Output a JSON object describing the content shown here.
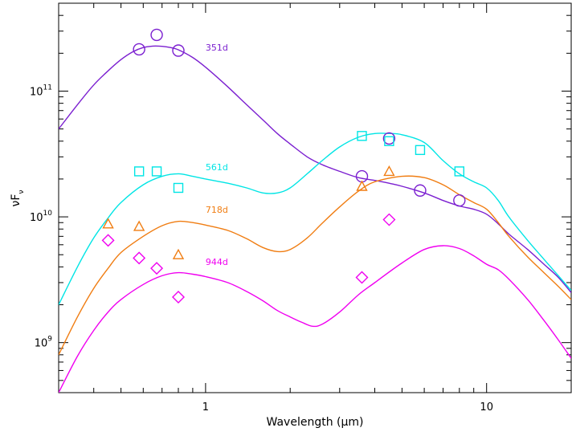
{
  "chart_data": {
    "type": "line",
    "xlabel": "Wavelength (μm)",
    "ylabel": "νF",
    "ylabel_subscript": "ν",
    "xscale": "log",
    "yscale": "log",
    "xlim": [
      0.3,
      20
    ],
    "ylim": [
      400000000.0,
      500000000000.0
    ],
    "x_tick_labels": [
      {
        "value": 1,
        "text": "1"
      },
      {
        "value": 10,
        "text": "10"
      }
    ],
    "y_tick_labels": [
      {
        "value": 1000000000.0,
        "base": "10",
        "exp": "9"
      },
      {
        "value": 10000000000.0,
        "base": "10",
        "exp": "10"
      },
      {
        "value": 100000000000.0,
        "base": "10",
        "exp": "11"
      }
    ],
    "grid": false,
    "series": [
      {
        "name": "351d",
        "color": "#7b1fd0",
        "marker": "circle",
        "label_at": [
          1.0,
          210000000000.0
        ],
        "curve": [
          [
            0.3,
            50000000000.0
          ],
          [
            0.35,
            78000000000.0
          ],
          [
            0.4,
            112000000000.0
          ],
          [
            0.45,
            145000000000.0
          ],
          [
            0.5,
            178000000000.0
          ],
          [
            0.55,
            205000000000.0
          ],
          [
            0.6,
            222000000000.0
          ],
          [
            0.65,
            228000000000.0
          ],
          [
            0.7,
            227000000000.0
          ],
          [
            0.75,
            222000000000.0
          ],
          [
            0.8,
            213000000000.0
          ],
          [
            0.9,
            185000000000.0
          ],
          [
            1.0,
            155000000000.0
          ],
          [
            1.2,
            108000000000.0
          ],
          [
            1.4,
            78000000000.0
          ],
          [
            1.6,
            59000000000.0
          ],
          [
            1.8,
            46000000000.0
          ],
          [
            2.0,
            38000000000.0
          ],
          [
            2.3,
            30000000000.0
          ],
          [
            2.6,
            26000000000.0
          ],
          [
            3.0,
            23000000000.0
          ],
          [
            3.5,
            20500000000.0
          ],
          [
            4.0,
            19500000000.0
          ],
          [
            4.5,
            18500000000.0
          ],
          [
            5.0,
            17500000000.0
          ],
          [
            6.0,
            15500000000.0
          ],
          [
            7.0,
            13500000000.0
          ],
          [
            8.0,
            12200000000.0
          ],
          [
            9.0,
            11500000000.0
          ],
          [
            10.0,
            10500000000.0
          ],
          [
            11.0,
            8800000000.0
          ],
          [
            12.0,
            7300000000.0
          ],
          [
            14.0,
            5500000000.0
          ],
          [
            16.0,
            4200000000.0
          ],
          [
            18.0,
            3300000000.0
          ],
          [
            20.0,
            2500000000.0
          ]
        ],
        "points": [
          [
            0.58,
            215000000000.0
          ],
          [
            0.67,
            280000000000.0
          ],
          [
            0.8,
            210000000000.0
          ],
          [
            3.6,
            21000000000.0
          ],
          [
            4.5,
            42000000000.0
          ],
          [
            5.8,
            16200000000.0
          ],
          [
            8.0,
            13500000000.0
          ]
        ]
      },
      {
        "name": "561d",
        "color": "#00e5e5",
        "marker": "square",
        "label_at": [
          1.0,
          23500000000.0
        ],
        "curve": [
          [
            0.3,
            2000000000.0
          ],
          [
            0.35,
            4000000000.0
          ],
          [
            0.4,
            6800000000.0
          ],
          [
            0.45,
            9800000000.0
          ],
          [
            0.5,
            13000000000.0
          ],
          [
            0.6,
            18000000000.0
          ],
          [
            0.7,
            21000000000.0
          ],
          [
            0.8,
            22000000000.0
          ],
          [
            0.9,
            21000000000.0
          ],
          [
            1.0,
            20000000000.0
          ],
          [
            1.2,
            18500000000.0
          ],
          [
            1.4,
            17000000000.0
          ],
          [
            1.6,
            15500000000.0
          ],
          [
            1.8,
            15500000000.0
          ],
          [
            2.0,
            17000000000.0
          ],
          [
            2.3,
            22000000000.0
          ],
          [
            2.6,
            28000000000.0
          ],
          [
            3.0,
            36000000000.0
          ],
          [
            3.5,
            43000000000.0
          ],
          [
            4.0,
            46000000000.0
          ],
          [
            4.5,
            46000000000.0
          ],
          [
            5.0,
            45000000000.0
          ],
          [
            6.0,
            39000000000.0
          ],
          [
            7.0,
            28000000000.0
          ],
          [
            8.0,
            22000000000.0
          ],
          [
            9.0,
            19000000000.0
          ],
          [
            10.0,
            17000000000.0
          ],
          [
            11.0,
            13500000000.0
          ],
          [
            12.0,
            10000000000.0
          ],
          [
            14.0,
            6500000000.0
          ],
          [
            16.0,
            4600000000.0
          ],
          [
            18.0,
            3400000000.0
          ],
          [
            20.0,
            2600000000.0
          ]
        ],
        "points": [
          [
            0.58,
            23000000000.0
          ],
          [
            0.67,
            23000000000.0
          ],
          [
            0.8,
            17000000000.0
          ],
          [
            3.6,
            44000000000.0
          ],
          [
            4.5,
            40000000000.0
          ],
          [
            5.8,
            34000000000.0
          ],
          [
            8.0,
            23000000000.0
          ]
        ]
      },
      {
        "name": "718d",
        "color": "#f07d12",
        "marker": "triangle",
        "label_at": [
          1.0,
          10800000000.0
        ],
        "curve": [
          [
            0.3,
            800000000.0
          ],
          [
            0.35,
            1600000000.0
          ],
          [
            0.4,
            2700000000.0
          ],
          [
            0.45,
            3900000000.0
          ],
          [
            0.5,
            5200000000.0
          ],
          [
            0.6,
            7000000000.0
          ],
          [
            0.7,
            8500000000.0
          ],
          [
            0.8,
            9200000000.0
          ],
          [
            0.9,
            9000000000.0
          ],
          [
            1.0,
            8600000000.0
          ],
          [
            1.2,
            7800000000.0
          ],
          [
            1.4,
            6700000000.0
          ],
          [
            1.6,
            5700000000.0
          ],
          [
            1.8,
            5300000000.0
          ],
          [
            2.0,
            5500000000.0
          ],
          [
            2.3,
            6800000000.0
          ],
          [
            2.6,
            8900000000.0
          ],
          [
            3.0,
            12000000000.0
          ],
          [
            3.5,
            16000000000.0
          ],
          [
            4.0,
            19000000000.0
          ],
          [
            5.0,
            21000000000.0
          ],
          [
            6.0,
            20500000000.0
          ],
          [
            7.0,
            18000000000.0
          ],
          [
            8.0,
            15000000000.0
          ],
          [
            9.0,
            13000000000.0
          ],
          [
            10.0,
            11500000000.0
          ],
          [
            11.0,
            9000000000.0
          ],
          [
            12.0,
            7000000000.0
          ],
          [
            14.0,
            4800000000.0
          ],
          [
            16.0,
            3600000000.0
          ],
          [
            18.0,
            2800000000.0
          ],
          [
            20.0,
            2200000000.0
          ]
        ],
        "points": [
          [
            0.45,
            8800000000.0
          ],
          [
            0.58,
            8400000000.0
          ],
          [
            0.8,
            5000000000.0
          ],
          [
            3.6,
            17500000000.0
          ],
          [
            4.5,
            23000000000.0
          ]
        ]
      },
      {
        "name": "944d",
        "color": "#f000f0",
        "marker": "diamond",
        "label_at": [
          1.0,
          4150000000.0
        ],
        "curve": [
          [
            0.3,
            400000000.0
          ],
          [
            0.35,
            780000000.0
          ],
          [
            0.4,
            1250000000.0
          ],
          [
            0.45,
            1750000000.0
          ],
          [
            0.5,
            2200000000.0
          ],
          [
            0.6,
            2900000000.0
          ],
          [
            0.7,
            3400000000.0
          ],
          [
            0.8,
            3600000000.0
          ],
          [
            0.9,
            3500000000.0
          ],
          [
            1.0,
            3350000000.0
          ],
          [
            1.2,
            3000000000.0
          ],
          [
            1.4,
            2550000000.0
          ],
          [
            1.6,
            2150000000.0
          ],
          [
            1.8,
            1800000000.0
          ],
          [
            2.0,
            1600000000.0
          ],
          [
            2.2,
            1450000000.0
          ],
          [
            2.4,
            1350000000.0
          ],
          [
            2.6,
            1400000000.0
          ],
          [
            3.0,
            1750000000.0
          ],
          [
            3.5,
            2400000000.0
          ],
          [
            4.0,
            3000000000.0
          ],
          [
            5.0,
            4300000000.0
          ],
          [
            6.0,
            5500000000.0
          ],
          [
            7.0,
            5900000000.0
          ],
          [
            8.0,
            5600000000.0
          ],
          [
            9.0,
            4900000000.0
          ],
          [
            10.0,
            4200000000.0
          ],
          [
            11.0,
            3800000000.0
          ],
          [
            12.0,
            3200000000.0
          ],
          [
            14.0,
            2200000000.0
          ],
          [
            16.0,
            1500000000.0
          ],
          [
            18.0,
            1050000000.0
          ],
          [
            20.0,
            750000000.0
          ]
        ],
        "points": [
          [
            0.45,
            6500000000.0
          ],
          [
            0.58,
            4700000000.0
          ],
          [
            0.67,
            3900000000.0
          ],
          [
            0.8,
            2300000000.0
          ],
          [
            3.6,
            3300000000.0
          ],
          [
            4.5,
            9500000000.0
          ]
        ]
      }
    ]
  }
}
